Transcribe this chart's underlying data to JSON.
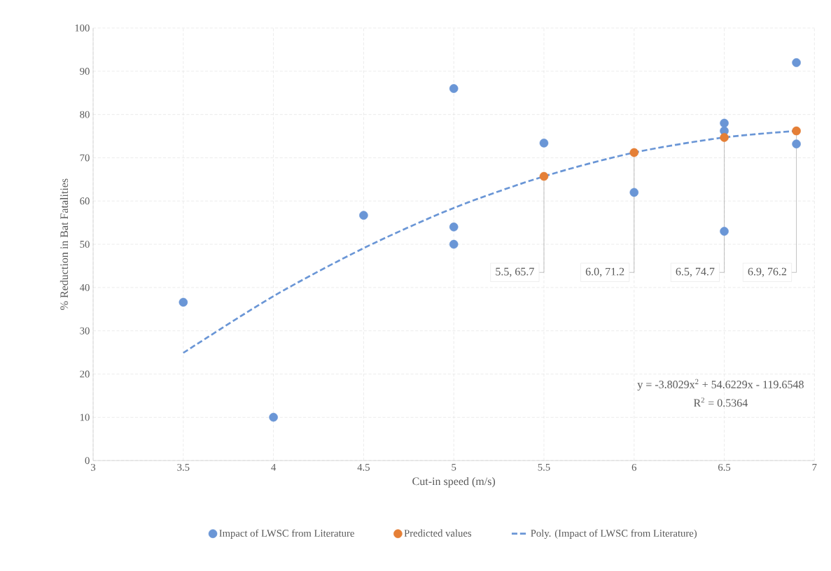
{
  "chart_data": {
    "type": "scatter",
    "xlabel": "Cut-in speed (m/s)",
    "ylabel": "% Reduction in Bat Fatalities",
    "xlim": [
      3,
      7
    ],
    "xticks": [
      3,
      3.5,
      4,
      4.5,
      5,
      5.5,
      6,
      6.5,
      7
    ],
    "ylim": [
      0,
      100
    ],
    "yticks": [
      0,
      10,
      20,
      30,
      40,
      50,
      60,
      70,
      80,
      90,
      100
    ],
    "grid": true,
    "legend": "bottom",
    "series": [
      {
        "name": "Impact of LWSC from Literature",
        "color": "#6a96d6",
        "marker": "circle",
        "x": [
          3.5,
          4,
          4.5,
          5,
          5,
          5,
          5.5,
          6,
          6.5,
          6.5,
          6.5,
          6.9,
          6.9
        ],
        "values": [
          36.6,
          10,
          56.7,
          86,
          54,
          50,
          73.4,
          62,
          78,
          76.2,
          53,
          92,
          73.2
        ]
      },
      {
        "name": "Predicted values",
        "color": "#e57f36",
        "marker": "circle",
        "x": [
          5.5,
          6,
          6.5,
          6.9
        ],
        "values": [
          65.7,
          71.2,
          74.7,
          76.2
        ]
      },
      {
        "name": "Poly. (Impact of LWSC from Literature)",
        "type": "line",
        "line_style": "dashed",
        "marker": "none",
        "color": "#6a96d6",
        "x": [
          3.5,
          4,
          4.5,
          5,
          5.5,
          6,
          6.5,
          6.9
        ],
        "values": [
          24.9,
          38.0,
          49.1,
          58.4,
          65.7,
          71.2,
          74.7,
          76.2
        ]
      }
    ],
    "annotations": [
      {
        "text": "5.5, 65.7",
        "x": 5.5,
        "y": 65.7
      },
      {
        "text": "6.0, 71.2",
        "x": 6,
        "y": 71.2
      },
      {
        "text": "6.5, 74.7",
        "x": 6.5,
        "y": 74.7
      },
      {
        "text": "6.9, 76.2",
        "x": 6.9,
        "y": 76.2
      },
      "y = -3.8029x$^{2}$ + 54.6229x - 119.6548",
      "R$^{2}$ = 0.5364"
    ]
  }
}
